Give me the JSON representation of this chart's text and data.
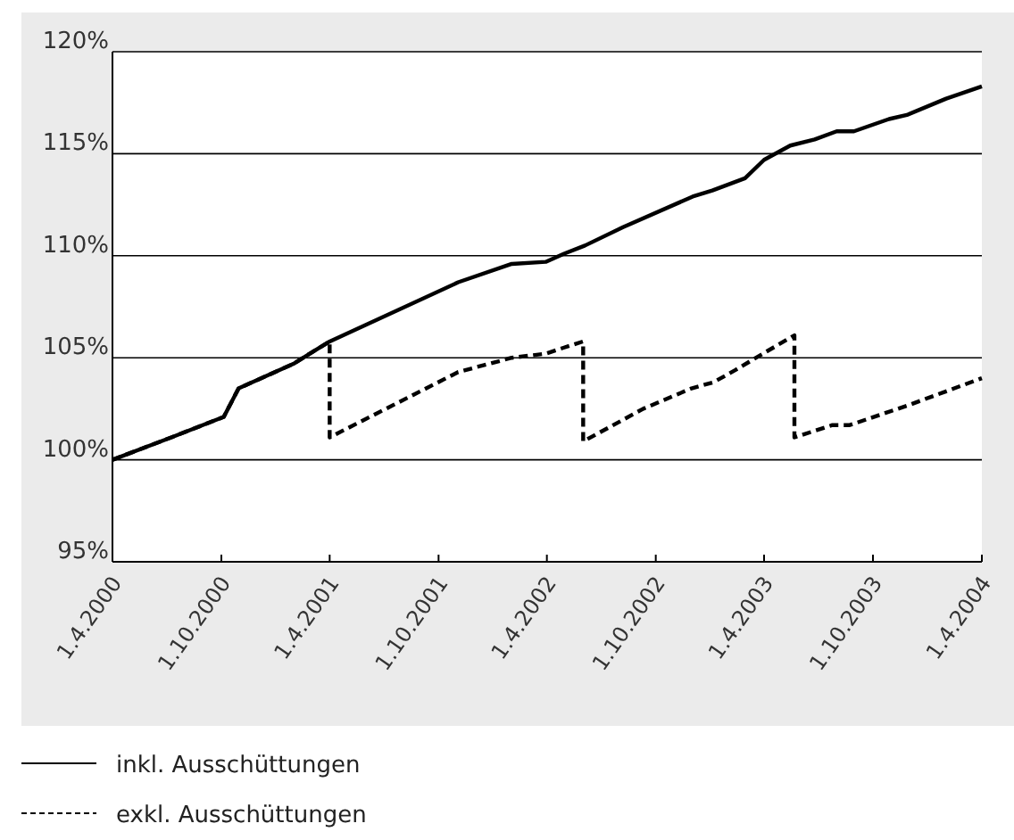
{
  "chart_data": {
    "type": "line",
    "xlim": [
      "2000-04-01",
      "2004-04-01"
    ],
    "xticks": [
      {
        "value": "2000-04-01",
        "label": "1.4.2000"
      },
      {
        "value": "2000-10-01",
        "label": "1.10.2000"
      },
      {
        "value": "2001-04-01",
        "label": "1.4.2001"
      },
      {
        "value": "2001-10-01",
        "label": "1.10.2001"
      },
      {
        "value": "2002-04-01",
        "label": "1.4.2002"
      },
      {
        "value": "2002-10-01",
        "label": "1.10.2002"
      },
      {
        "value": "2003-04-01",
        "label": "1.4.2003"
      },
      {
        "value": "2003-10-01",
        "label": "1.10.2003"
      },
      {
        "value": "2004-04-01",
        "label": "1.4.2004"
      }
    ],
    "ylim": [
      95,
      120
    ],
    "yticks": [
      {
        "value": 95,
        "label": "95%"
      },
      {
        "value": 100,
        "label": "100%"
      },
      {
        "value": 105,
        "label": "105%"
      },
      {
        "value": 110,
        "label": "110%"
      },
      {
        "value": 115,
        "label": "115%"
      },
      {
        "value": 120,
        "label": "120%"
      }
    ],
    "grid": "y",
    "legend": "bottom",
    "marker": "none",
    "series": [
      {
        "name": "inkl. Ausschüttungen",
        "color": "#000000",
        "line_style": "solid",
        "x": [
          "2000-04-01",
          "2000-07-09",
          "2000-10-05",
          "2000-10-30",
          "2001-01-30",
          "2001-03-04",
          "2001-04-01",
          "2001-11-03",
          "2002-02-01",
          "2002-03-30",
          "2002-04-30",
          "2002-06-04",
          "2002-08-07",
          "2002-12-02",
          "2003-01-04",
          "2003-02-28",
          "2003-04-01",
          "2003-05-15",
          "2003-06-25",
          "2003-08-01",
          "2003-08-30",
          "2003-10-28",
          "2003-11-27",
          "2004-02-01",
          "2004-04-01"
        ],
        "values": [
          100,
          101.1,
          102.1,
          103.5,
          104.7,
          105.3,
          105.8,
          108.7,
          109.6,
          109.7,
          110.1,
          110.5,
          111.4,
          112.9,
          113.2,
          113.8,
          114.7,
          115.4,
          115.7,
          116.1,
          116.1,
          116.7,
          116.9,
          117.7,
          118.3
        ]
      },
      {
        "name": "exkl. Ausschüttungen",
        "color": "#000000",
        "line_style": "dashed",
        "x": [
          "2000-04-01",
          "2000-07-09",
          "2000-10-05",
          "2000-10-30",
          "2001-01-30",
          "2001-03-04",
          "2001-04-01",
          "2001-04-01",
          "2001-11-03",
          "2002-02-01",
          "2002-03-30",
          "2002-04-30",
          "2002-06-01",
          "2002-06-01",
          "2002-09-10",
          "2002-11-30",
          "2003-01-06",
          "2003-02-12",
          "2003-03-30",
          "2003-05-22",
          "2003-05-22",
          "2003-07-25",
          "2003-08-23",
          "2003-12-02",
          "2004-04-01"
        ],
        "values": [
          100,
          101.1,
          102.1,
          103.5,
          104.7,
          105.3,
          105.8,
          101.1,
          104.3,
          105.0,
          105.2,
          105.5,
          105.8,
          100.9,
          102.5,
          103.5,
          103.8,
          104.4,
          105.2,
          106.1,
          101.1,
          101.7,
          101.7,
          102.7,
          104.0
        ]
      }
    ]
  }
}
